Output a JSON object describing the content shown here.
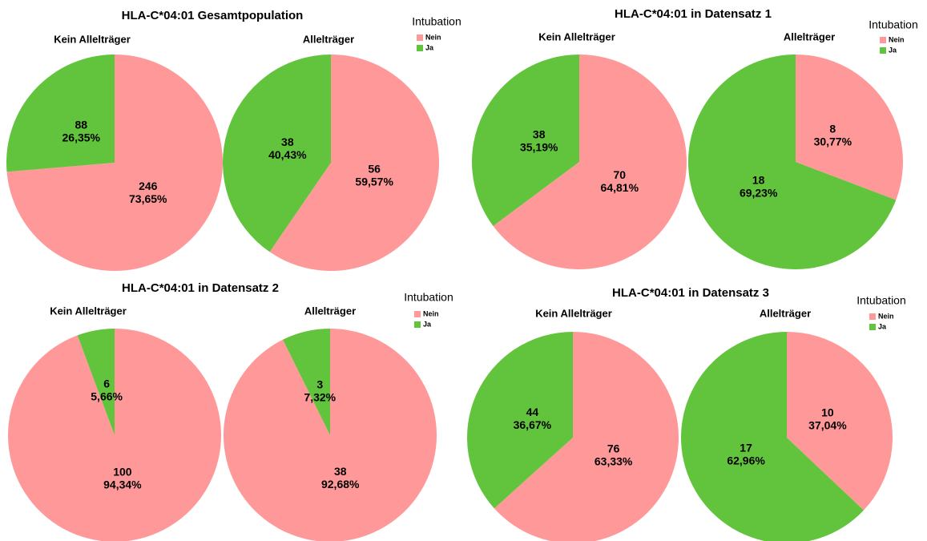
{
  "chart_data": [
    {
      "type": "pie",
      "title": "HLA-C*04:01 Gesamtpopulation",
      "legend_title": "Intubation",
      "categories": [
        "Nein",
        "Ja"
      ],
      "colors": [
        "#ff9999",
        "#62c43c"
      ],
      "pies": [
        {
          "name": "Kein Allelträger",
          "values": [
            246,
            88
          ],
          "percents": [
            73.65,
            26.35
          ],
          "percent_labels": [
            "73,65%",
            "26,35%"
          ]
        },
        {
          "name": "Allelträger",
          "values": [
            56,
            38
          ],
          "percents": [
            59.57,
            40.43
          ],
          "percent_labels": [
            "59,57%",
            "40,43%"
          ]
        }
      ]
    },
    {
      "type": "pie",
      "title": "HLA-C*04:01 in Datensatz 1",
      "legend_title": "Intubation",
      "categories": [
        "Nein",
        "Ja"
      ],
      "colors": [
        "#ff9999",
        "#62c43c"
      ],
      "pies": [
        {
          "name": "Kein Allelträger",
          "values": [
            70,
            38
          ],
          "percents": [
            64.81,
            35.19
          ],
          "percent_labels": [
            "64,81%",
            "35,19%"
          ]
        },
        {
          "name": "Allelträger",
          "values": [
            8,
            18
          ],
          "percents": [
            30.77,
            69.23
          ],
          "percent_labels": [
            "30,77%",
            "69,23%"
          ]
        }
      ]
    },
    {
      "type": "pie",
      "title": "HLA-C*04:01 in Datensatz 2",
      "legend_title": "Intubation",
      "categories": [
        "Nein",
        "Ja"
      ],
      "colors": [
        "#ff9999",
        "#62c43c"
      ],
      "pies": [
        {
          "name": "Kein Allelträger",
          "values": [
            100,
            6
          ],
          "percents": [
            94.34,
            5.66
          ],
          "percent_labels": [
            "94,34%",
            "5,66%"
          ]
        },
        {
          "name": "Allelträger",
          "values": [
            38,
            3
          ],
          "percents": [
            92.68,
            7.32
          ],
          "percent_labels": [
            "92,68%",
            "7,32%"
          ]
        }
      ]
    },
    {
      "type": "pie",
      "title": "HLA-C*04:01 in Datensatz 3",
      "legend_title": "Intubation",
      "categories": [
        "Nein",
        "Ja"
      ],
      "colors": [
        "#ff9999",
        "#62c43c"
      ],
      "pies": [
        {
          "name": "Kein Allelträger",
          "values": [
            76,
            44
          ],
          "percents": [
            63.33,
            36.67
          ],
          "percent_labels": [
            "63,33%",
            "36,67%"
          ]
        },
        {
          "name": "Allelträger",
          "values": [
            10,
            17
          ],
          "percents": [
            37.04,
            62.96
          ],
          "percent_labels": [
            "37,04%",
            "62,96%"
          ]
        }
      ]
    }
  ]
}
